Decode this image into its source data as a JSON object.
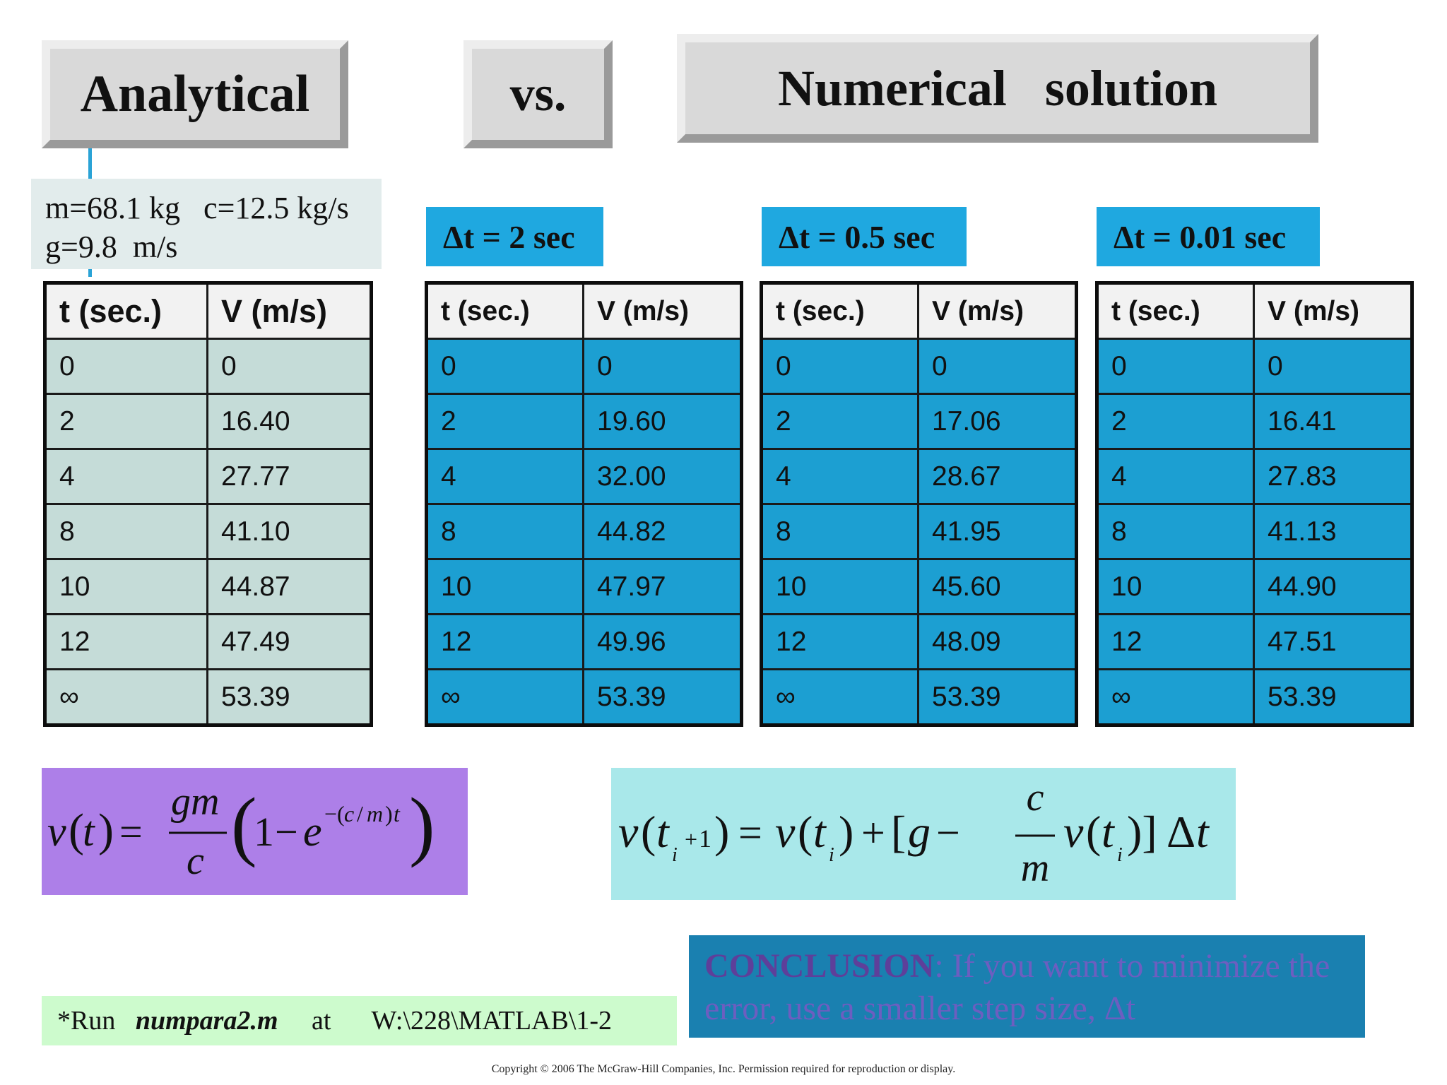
{
  "headers": {
    "analytical": "Analytical",
    "vs": "vs.",
    "numerical": "Numerical   solution"
  },
  "params": {
    "line1": "m=68.1 kg   c=12.5 kg/s",
    "line2": "g=9.8  m/s"
  },
  "columns": [
    "t (sec.)",
    "V (m/s)"
  ],
  "analytical_table": [
    [
      "0",
      "0"
    ],
    [
      "2",
      "16.40"
    ],
    [
      "4",
      "27.77"
    ],
    [
      "8",
      "41.10"
    ],
    [
      "10",
      "44.87"
    ],
    [
      "12",
      "47.49"
    ],
    [
      "∞",
      "53.39"
    ]
  ],
  "numerical_tables": [
    {
      "label": "Δt = 2 sec",
      "rows": [
        [
          "0",
          "0"
        ],
        [
          "2",
          "19.60"
        ],
        [
          "4",
          "32.00"
        ],
        [
          "8",
          "44.82"
        ],
        [
          "10",
          "47.97"
        ],
        [
          "12",
          "49.96"
        ],
        [
          "∞",
          "53.39"
        ]
      ]
    },
    {
      "label": "Δt = 0.5 sec",
      "rows": [
        [
          "0",
          "0"
        ],
        [
          "2",
          "17.06"
        ],
        [
          "4",
          "28.67"
        ],
        [
          "8",
          "41.95"
        ],
        [
          "10",
          "45.60"
        ],
        [
          "12",
          "48.09"
        ],
        [
          "∞",
          "53.39"
        ]
      ]
    },
    {
      "label": "Δt = 0.01 sec",
      "rows": [
        [
          "0",
          "0"
        ],
        [
          "2",
          "16.41"
        ],
        [
          "4",
          "27.83"
        ],
        [
          "8",
          "41.13"
        ],
        [
          "10",
          "44.90"
        ],
        [
          "12",
          "47.51"
        ],
        [
          "∞",
          "53.39"
        ]
      ]
    }
  ],
  "conclusion": {
    "keyword": "CONCLUSION",
    "text": ": If you want to minimize the error, use a smaller step size, Δt"
  },
  "run": {
    "prefix": "*Run   ",
    "script": "numpara2.m",
    "middle": "     at      ",
    "path": "W:\\228\\MATLAB\\1-2"
  },
  "copyright": "Copyright © 2006 The McGraw-Hill Companies, Inc.  Permission required for reproduction or display."
}
